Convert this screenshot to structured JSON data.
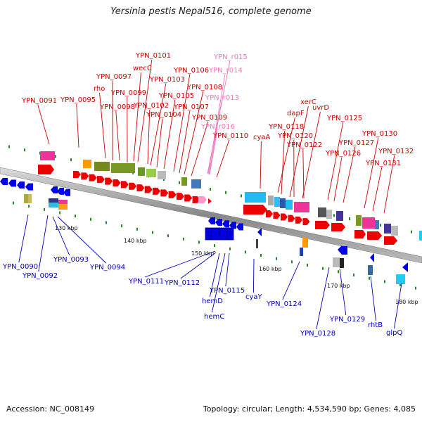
{
  "title": "Yersinia pestis Nepal516, complete genome",
  "footer": {
    "accession": "Accession: NC_008149",
    "summary": "Topology: circular; Length: 4,534,590 bp; Genes: 4,085"
  },
  "colors": {
    "forward_arrow": "#ee0000",
    "reverse_arrow": "#0000ee",
    "rna": "#ff99cc",
    "backbone": "#999999",
    "tick_dot": "#228822"
  },
  "scale_ticks": [
    "130 kbp",
    "140 kbp",
    "150 kbp",
    "160 kbp",
    "170 kbp",
    "180 kbp"
  ],
  "labels_above": [
    "YPN_0091",
    "YPN_0095",
    "rho",
    "YPN_0097",
    "wecC",
    "YPN_0099",
    "YPN_0101",
    "YPN_0098",
    "YPN_0102",
    "YPN_0103",
    "YPN_0104",
    "YPN_0105",
    "YPN_0106",
    "YPN_0107",
    "YPN_0108",
    "YPN_0109",
    "YPN_0110",
    "YPN_r015",
    "YPN_r014",
    "YPN_r013",
    "YPN_r016",
    "cyaA",
    "dapF",
    "YPN_0118",
    "xerC",
    "YPN_0120",
    "uvrD",
    "YPN_0122",
    "YPN_0125",
    "YPN_0126",
    "YPN_0127",
    "YPN_0130",
    "YPN_0131",
    "YPN_0132"
  ],
  "labels_below": [
    "YPN_0090",
    "YPN_0092",
    "YPN_0093",
    "YPN_0094",
    "YPN_0111",
    "YPN_0112",
    "hemD",
    "hemC",
    "YPN_0115",
    "cyaY",
    "YPN_0124",
    "YPN_0128",
    "YPN_0129",
    "rhtB",
    "glpQ"
  ]
}
